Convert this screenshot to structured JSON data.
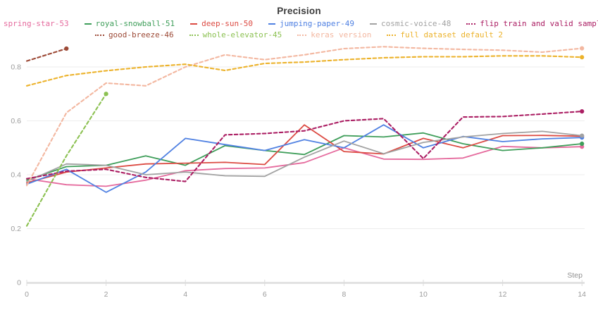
{
  "title": "Precision",
  "axes": {
    "xlabel": "Step",
    "x_ticks": [
      "0",
      "2",
      "4",
      "6",
      "8",
      "10",
      "12",
      "14"
    ],
    "y_ticks": [
      "0",
      "0.2",
      "0.4",
      "0.6",
      "0.8"
    ]
  },
  "legend": {
    "rows": [
      [
        0,
        1,
        2,
        3,
        4,
        5
      ],
      [
        6,
        7,
        8,
        9
      ]
    ]
  },
  "chart_data": {
    "type": "line",
    "title": "Precision",
    "xlabel": "Step",
    "x_range": [
      0,
      14
    ],
    "y_ticks": [
      0,
      0.2,
      0.4,
      0.6,
      0.8
    ],
    "grid": "horizontal",
    "legend_position": "top",
    "series": [
      {
        "name": "spring-star-53",
        "color": "#e56a9d",
        "style": "solid",
        "end_dot": true,
        "x": [
          0,
          1,
          2,
          3,
          4,
          5,
          6,
          7,
          8,
          9,
          10,
          11,
          12,
          13,
          14
        ],
        "values": [
          0.385,
          0.363,
          0.357,
          0.38,
          0.415,
          0.423,
          0.425,
          0.445,
          0.5,
          0.458,
          0.457,
          0.462,
          0.505,
          0.5,
          0.504
        ]
      },
      {
        "name": "royal-snowball-51",
        "color": "#3f9e5a",
        "style": "solid",
        "end_dot": true,
        "x": [
          0,
          1,
          2,
          3,
          4,
          5,
          6,
          7,
          8,
          9,
          10,
          11,
          12,
          13,
          14
        ],
        "values": [
          0.38,
          0.43,
          0.435,
          0.47,
          0.435,
          0.508,
          0.49,
          0.475,
          0.545,
          0.54,
          0.555,
          0.515,
          0.49,
          0.5,
          0.515
        ]
      },
      {
        "name": "deep-sun-50",
        "color": "#dc4b43",
        "style": "solid",
        "end_dot": true,
        "x": [
          0,
          1,
          2,
          3,
          4,
          5,
          6,
          7,
          8,
          9,
          10,
          11,
          12,
          13,
          14
        ],
        "values": [
          0.37,
          0.41,
          0.425,
          0.44,
          0.443,
          0.446,
          0.438,
          0.585,
          0.486,
          0.477,
          0.535,
          0.5,
          0.545,
          0.546,
          0.543
        ]
      },
      {
        "name": "jumping-paper-49",
        "color": "#5081e2",
        "style": "solid",
        "end_dot": true,
        "x": [
          0,
          1,
          2,
          3,
          4,
          5,
          6,
          7,
          8,
          9,
          10,
          11,
          12,
          13,
          14
        ],
        "values": [
          0.365,
          0.42,
          0.335,
          0.41,
          0.535,
          0.512,
          0.49,
          0.53,
          0.5,
          0.585,
          0.5,
          0.542,
          0.523,
          0.533,
          0.538
        ]
      },
      {
        "name": "cosmic-voice-48",
        "color": "#a2a2a2",
        "style": "solid",
        "end_dot": true,
        "x": [
          0,
          1,
          2,
          3,
          4,
          5,
          6,
          7,
          8,
          9,
          10,
          11,
          12,
          13,
          14
        ],
        "values": [
          0.375,
          0.44,
          0.435,
          0.4,
          0.41,
          0.396,
          0.394,
          0.465,
          0.525,
          0.478,
          0.52,
          0.54,
          0.553,
          0.561,
          0.545
        ]
      },
      {
        "name": "flip train and valid sample",
        "color": "#ab1e63",
        "style": "dashed",
        "end_dot": true,
        "x": [
          0,
          1,
          2,
          3,
          4,
          5,
          6,
          7,
          8,
          9,
          10,
          11,
          12,
          13,
          14
        ],
        "values": [
          0.385,
          0.413,
          0.42,
          0.39,
          0.375,
          0.548,
          0.553,
          0.563,
          0.6,
          0.608,
          0.46,
          0.614,
          0.616,
          0.625,
          0.635
        ]
      },
      {
        "name": "good-breeze-46",
        "color": "#9c4936",
        "style": "dashed",
        "end_dot": true,
        "x": [
          0,
          1
        ],
        "values": [
          0.822,
          0.868
        ]
      },
      {
        "name": "whole-elevator-45",
        "color": "#8cc152",
        "style": "dashed",
        "end_dot": true,
        "x": [
          0,
          1,
          2
        ],
        "values": [
          0.21,
          0.47,
          0.7
        ]
      },
      {
        "name": "keras version",
        "color": "#f3b7a0",
        "style": "dashed",
        "end_dot": true,
        "x": [
          0,
          1,
          2,
          3,
          4,
          5,
          6,
          7,
          8,
          9,
          10,
          11,
          12,
          13,
          14
        ],
        "values": [
          0.36,
          0.63,
          0.74,
          0.73,
          0.8,
          0.845,
          0.827,
          0.845,
          0.868,
          0.875,
          0.869,
          0.865,
          0.862,
          0.855,
          0.869
        ]
      },
      {
        "name": "full dataset default 2",
        "color": "#ecb22a",
        "style": "dashed",
        "end_dot": true,
        "x": [
          0,
          1,
          2,
          3,
          4,
          5,
          6,
          7,
          8,
          9,
          10,
          11,
          12,
          13,
          14
        ],
        "values": [
          0.73,
          0.768,
          0.786,
          0.8,
          0.81,
          0.787,
          0.813,
          0.818,
          0.827,
          0.834,
          0.838,
          0.838,
          0.841,
          0.841,
          0.836
        ]
      }
    ]
  }
}
